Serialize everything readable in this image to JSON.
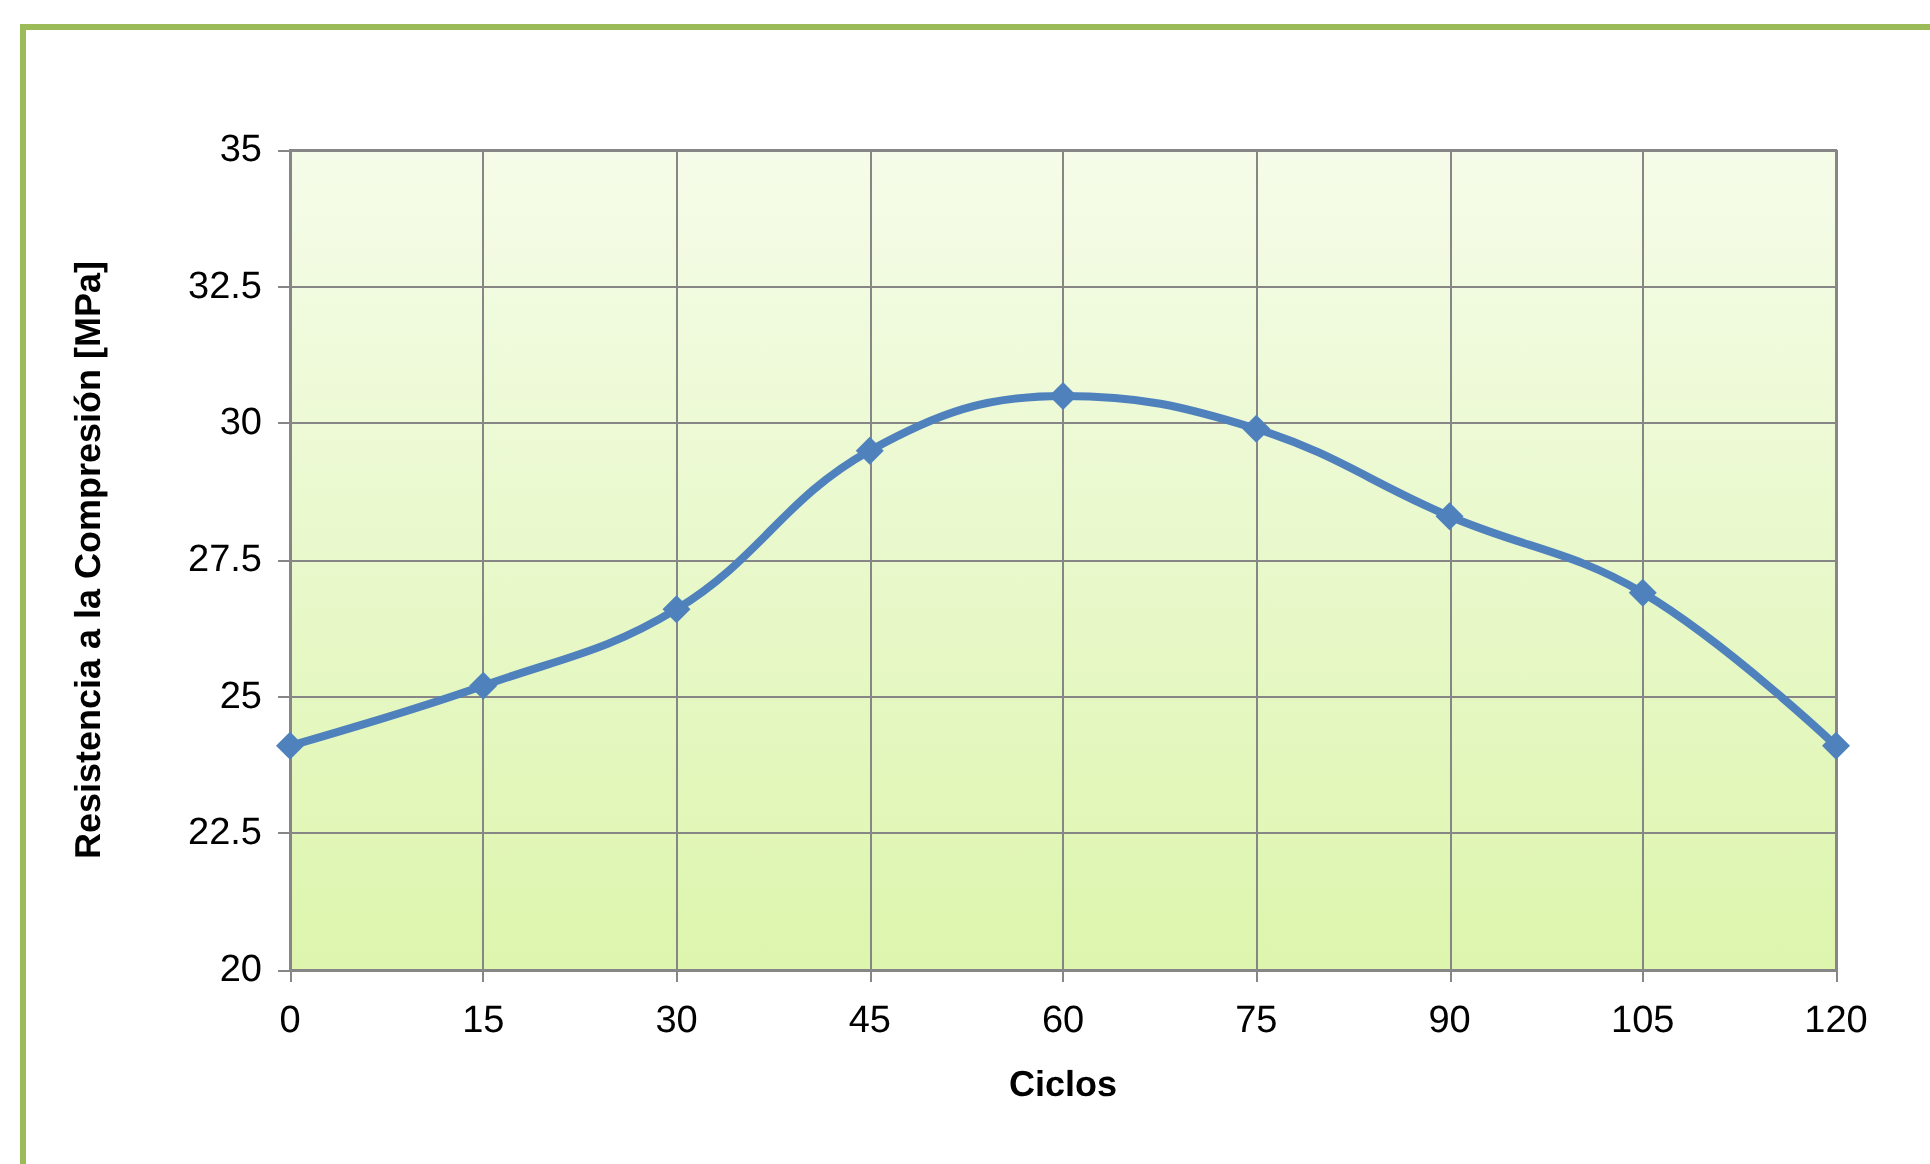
{
  "chart_data": {
    "type": "line",
    "xlabel": "Ciclos",
    "ylabel": "Resistencia a la Compresión [MPa]",
    "x": [
      0,
      15,
      30,
      45,
      60,
      75,
      90,
      105,
      120
    ],
    "series": [
      {
        "color": "#4f81bd",
        "values": [
          24.1,
          25.2,
          26.6,
          29.5,
          30.5,
          29.9,
          28.3,
          26.9,
          24.1
        ]
      }
    ],
    "xlim": [
      0,
      120
    ],
    "xticks": [
      0,
      15,
      30,
      45,
      60,
      75,
      90,
      105,
      120
    ],
    "ylim": [
      20,
      35
    ],
    "yticks": [
      20,
      22.5,
      25,
      27.5,
      30,
      32.5,
      35
    ],
    "grid": true,
    "marker": "diamond",
    "line_style": "solid"
  }
}
